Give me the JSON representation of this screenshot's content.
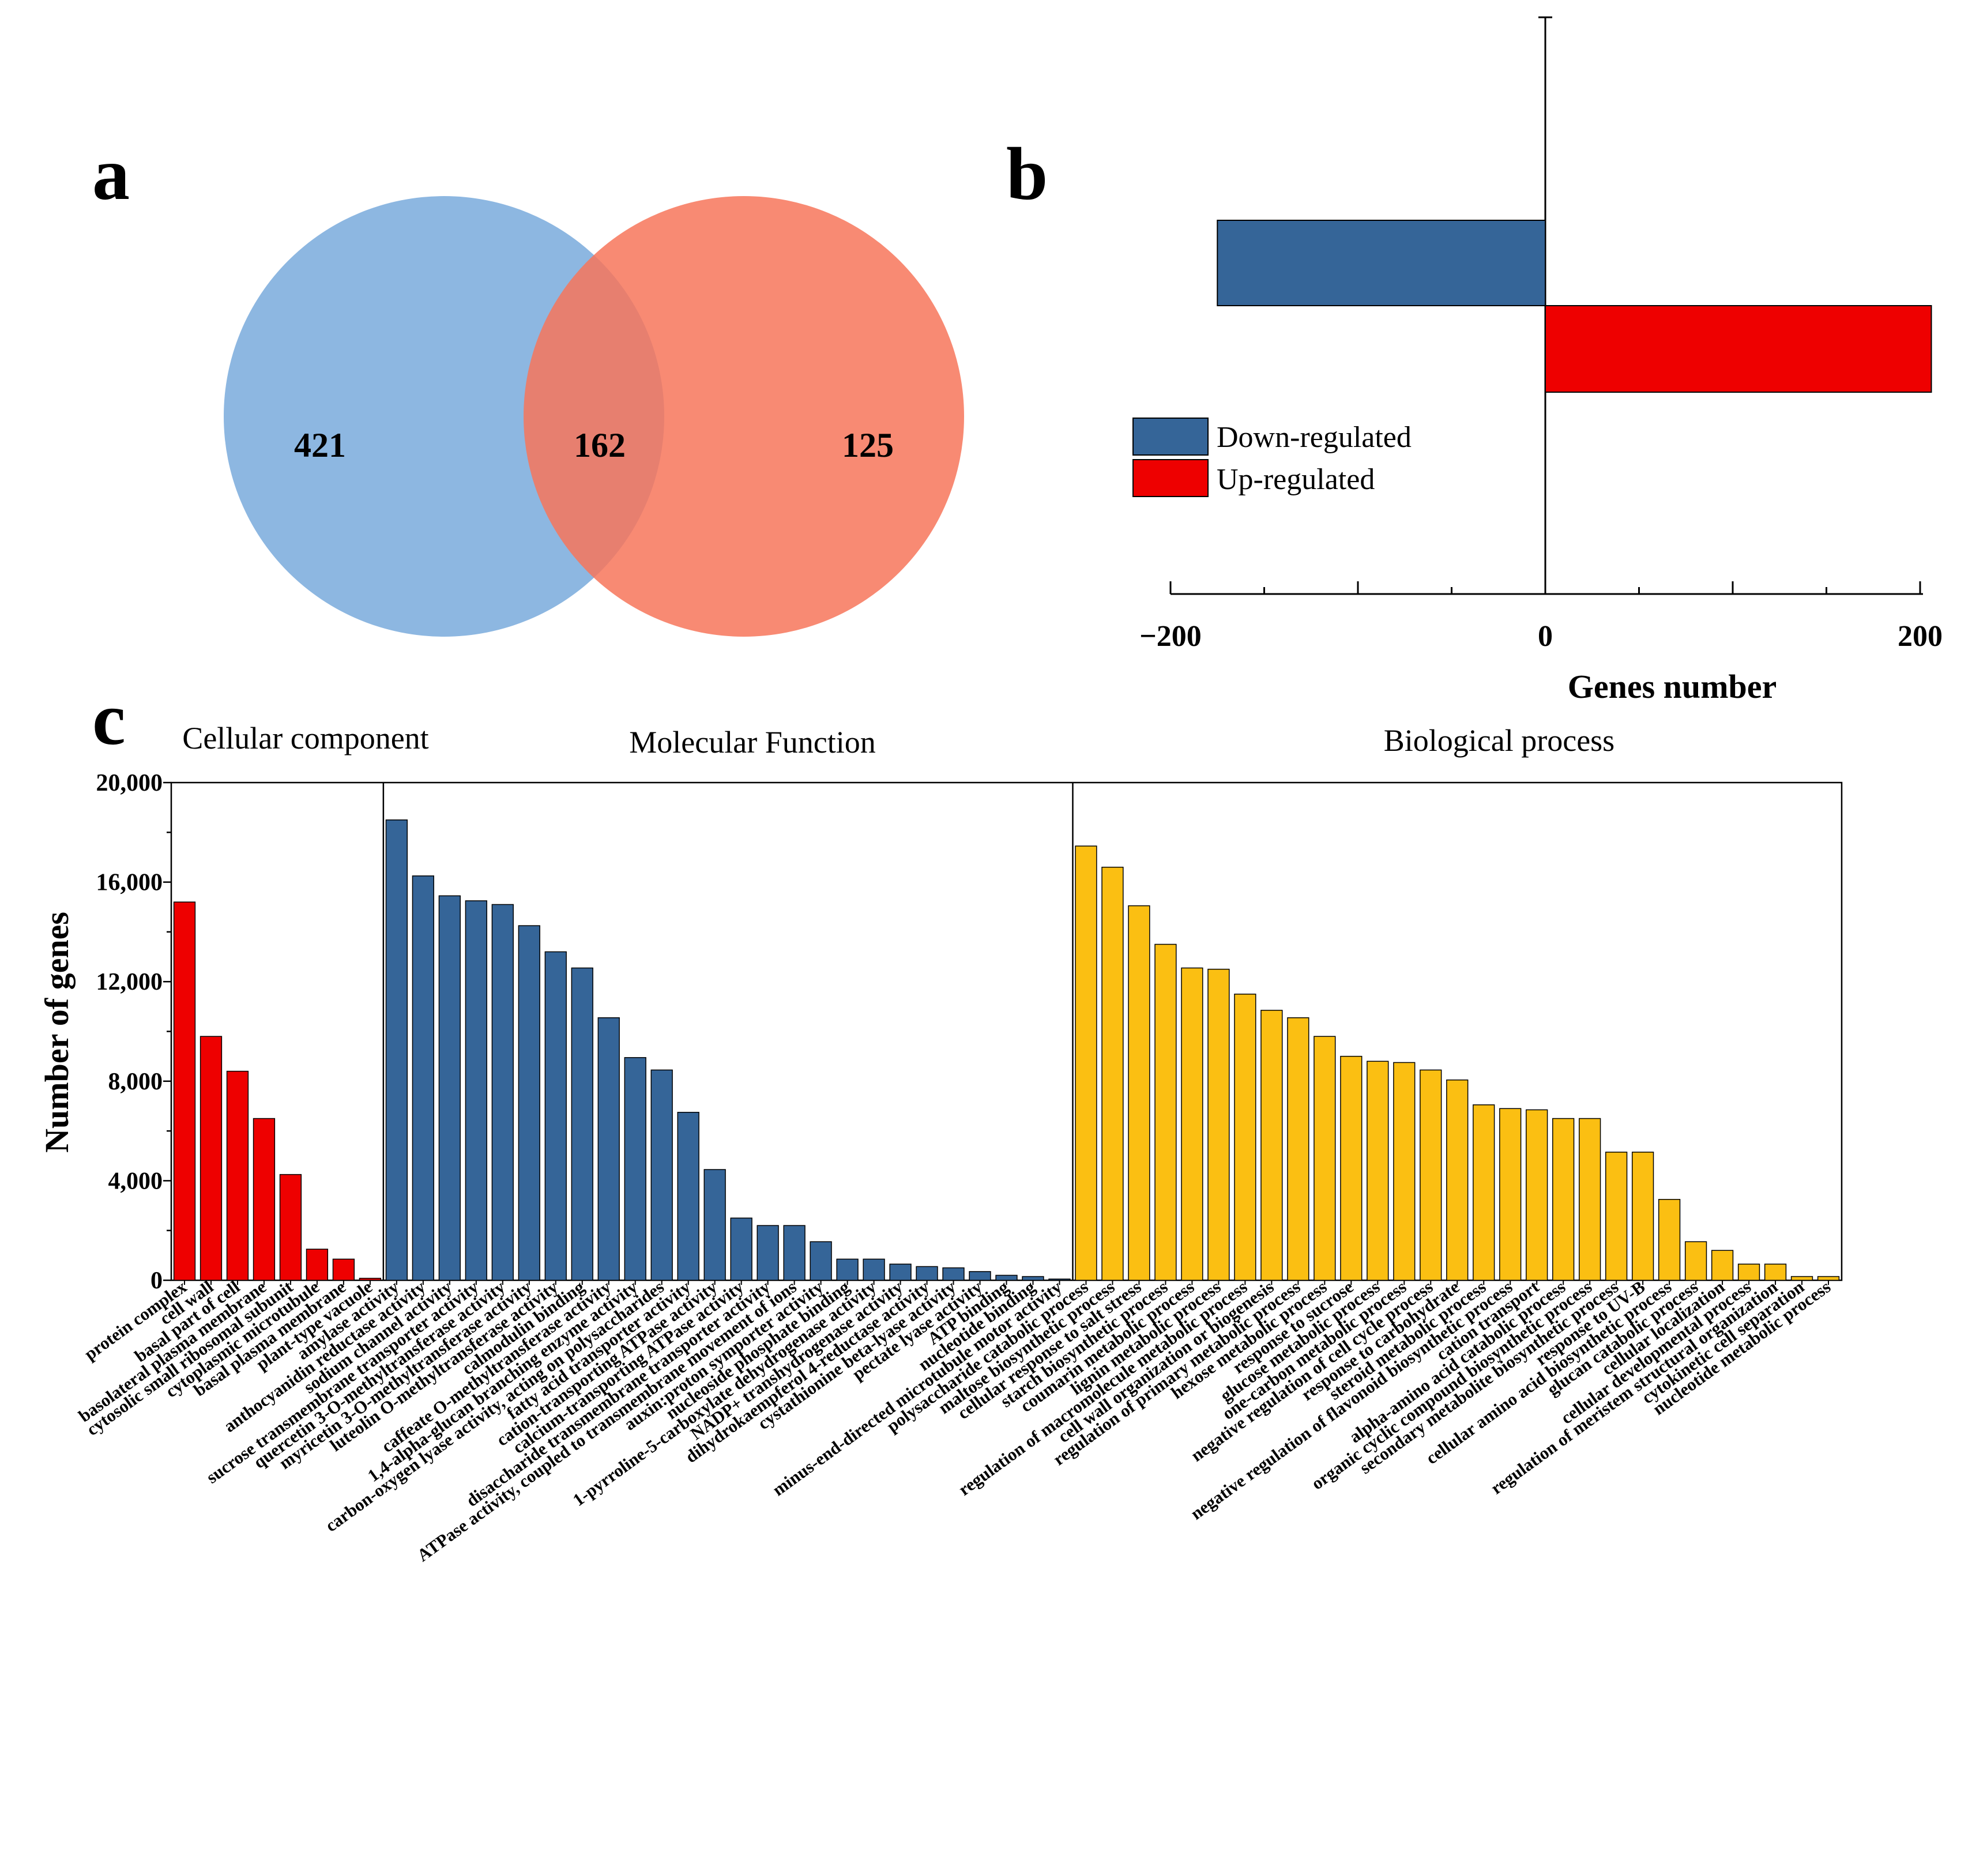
{
  "panel_a": {
    "letter": "a",
    "chart_data": {
      "type": "venn",
      "sets": [
        {
          "name": "left set",
          "color": "#8db7e1",
          "only_count": "421"
        },
        {
          "name": "right set",
          "color": "#f7765a",
          "only_count": "125"
        }
      ],
      "intersection_count": "162"
    }
  },
  "panel_b": {
    "letter": "b",
    "chart_data": {
      "type": "bar",
      "orientation": "horizontal",
      "series": [
        {
          "name": "Down-regulated",
          "value": -175,
          "color": "#356598"
        },
        {
          "name": "Up-regulated",
          "value": 206,
          "color": "#ee0000"
        }
      ],
      "xlim": [
        -200,
        205
      ],
      "xticks": [
        "−200",
        "0",
        "200"
      ],
      "xlabel": "Genes number",
      "legend": [
        "Down-regulated",
        "Up-regulated"
      ],
      "legend_position": "lower-left"
    }
  },
  "panel_c": {
    "letter": "c",
    "chart_data": {
      "type": "bar",
      "ylabel": "Number of genes",
      "ylim": [
        0,
        20000
      ],
      "yticks": [
        "0",
        "4,000",
        "8,000",
        "12,000",
        "16,000",
        "20,000"
      ],
      "groups": [
        {
          "name": "Cellular component",
          "color": "#ee0000",
          "categories": [
            "protein complex",
            "cell wall",
            "basal part of cell",
            "basolateral plasma membrane",
            "cytosolic small ribosomal subunit",
            "cytoplasmic microtubule",
            "basal plasma membrane",
            "plant-type vacuole"
          ],
          "values": [
            15200,
            9800,
            8400,
            6500,
            4250,
            1250,
            850,
            80
          ]
        },
        {
          "name": "Molecular Function",
          "color": "#356598",
          "categories": [
            "amylase activity",
            "anthocyanidin reductase activity",
            "sodium channel activity",
            "sucrose transmembrane transporter activity",
            "quercetin 3-O-methyltransferase activity",
            "myricetin 3-O-methyltransferase activity",
            "luteolin O-methyltransferase activity",
            "calmodulin binding",
            "caffeate O-methyltransferase activity",
            "1,4-alpha-glucan branching enzyme activity",
            "carbon-oxygen lyase activity, acting on polysaccharides",
            "fatty acid transporter activity",
            "cation-transporting ATPase activity",
            "calcium-transporting ATPase activity",
            "disaccharide transmembrane transporter activity",
            "ATPase activity, coupled to transmembrane movement of ions",
            "auxin:proton symporter activity",
            "nucleoside phosphate binding",
            "1-pyrroline-5-carboxylate dehydrogenase activity",
            "NADP+ transhydrogenase activity",
            "dihydrokaempferol 4-reductase activity",
            "cystathionine beta-lyase activity",
            "pectate lyase activity",
            "ATP binding",
            "nucleotide binding",
            "minus-end-directed microtubule motor activity"
          ],
          "values": [
            18500,
            16250,
            15450,
            15250,
            15100,
            14250,
            13200,
            12550,
            10550,
            8950,
            8450,
            6750,
            4450,
            2500,
            2200,
            2200,
            1550,
            850,
            850,
            650,
            550,
            500,
            350,
            200,
            150,
            50
          ]
        },
        {
          "name": "Biological process",
          "color": "#fbbf12",
          "categories": [
            "polysaccharide catabolic process",
            "maltose biosynthetic process",
            "cellular response to salt stress",
            "starch biosynthetic process",
            "coumarin metabolic process",
            "lignin metabolic process",
            "regulation of macromolecule metabolic process",
            "cell wall organization or biogenesis",
            "regulation of primary metabolic process",
            "hexose metabolic process",
            "response to sucrose",
            "glucose metabolic process",
            "one-carbon metabolic process",
            "negative regulation of cell cycle process",
            "response to carbohydrate",
            "steroid metabolic process",
            "negative regulation of flavonoid biosynthetic process",
            "cation transport",
            "alpha-amino acid catabolic process",
            "organic cyclic compound biosynthetic process",
            "secondary metabolite biosynthetic process",
            "response to UV-B",
            "cellular amino acid biosynthetic process",
            "glucan catabolic process",
            "cellular localization",
            "cellular developmental process",
            "regulation of meristem structural organization",
            "cytokinetic cell separation",
            "nucleotide metabolic process"
          ],
          "values": [
            17450,
            16600,
            15050,
            13500,
            12550,
            12500,
            11500,
            10850,
            10550,
            9800,
            9000,
            8800,
            8750,
            8450,
            8050,
            7050,
            6900,
            6850,
            6500,
            6500,
            5150,
            5150,
            3250,
            1550,
            1200,
            650,
            650,
            150,
            150
          ]
        }
      ]
    }
  }
}
